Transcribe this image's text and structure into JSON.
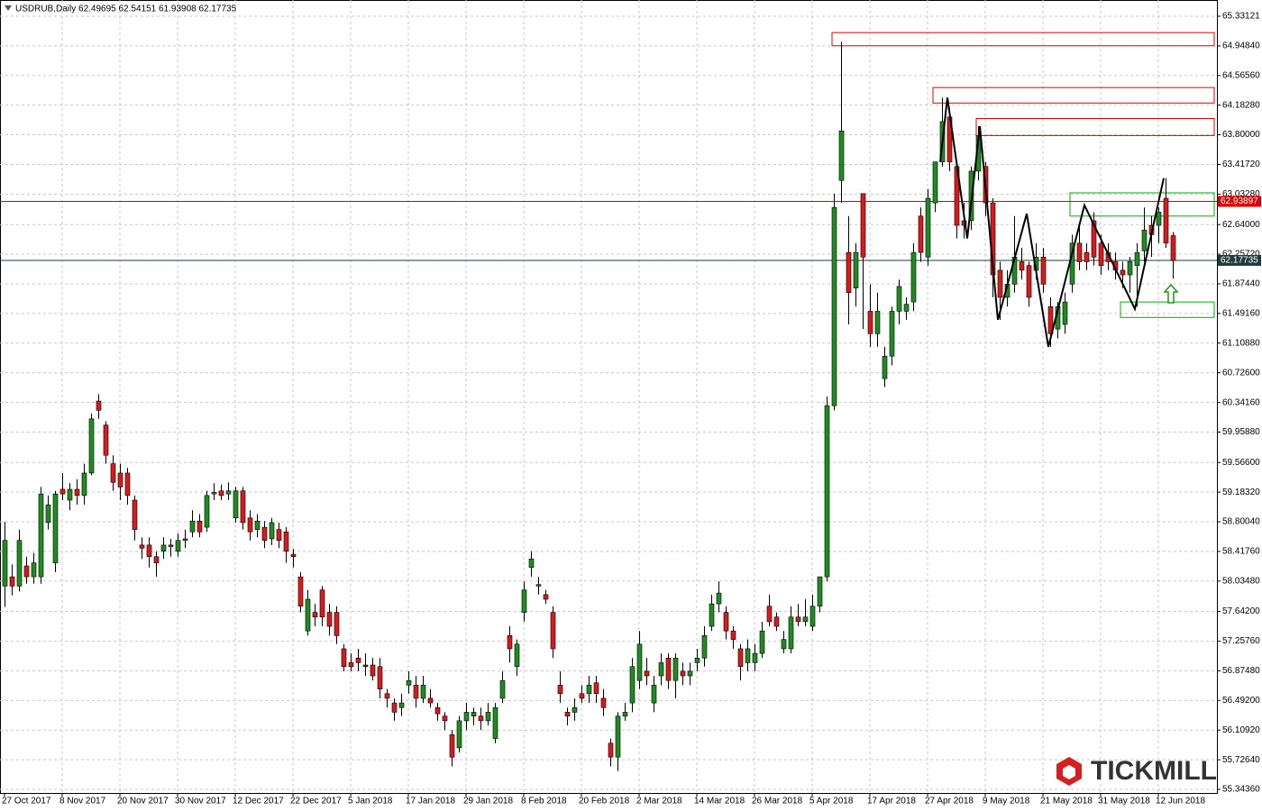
{
  "chart_data": {
    "type": "candlestick",
    "title": "USDRUB,Daily  62.49695 62.54151 61.93908 62.17735",
    "brand": "TICKMILL",
    "up_color": "#1f8c1f",
    "down_color": "#d91a1a",
    "grid": true,
    "xlim": [
      -0.625,
      168.125
    ],
    "ylim": [
      55.297,
      65.541
    ],
    "xticks": [
      {
        "value": 0,
        "label": "27 Oct 2017"
      },
      {
        "value": 8,
        "label": "8 Nov 2017"
      },
      {
        "value": 16,
        "label": "20 Nov 2017"
      },
      {
        "value": 24,
        "label": "30 Nov 2017"
      },
      {
        "value": 32,
        "label": "12 Dec 2017"
      },
      {
        "value": 40,
        "label": "22 Dec 2017"
      },
      {
        "value": 48,
        "label": "5 Jan 2018"
      },
      {
        "value": 56,
        "label": "17 Jan 2018"
      },
      {
        "value": 64,
        "label": "29 Jan 2018"
      },
      {
        "value": 72,
        "label": "8 Feb 2018"
      },
      {
        "value": 80,
        "label": "20 Feb 2018"
      },
      {
        "value": 88,
        "label": "2 Mar 2018"
      },
      {
        "value": 96,
        "label": "14 Mar 2018"
      },
      {
        "value": 104,
        "label": "26 Mar 2018"
      },
      {
        "value": 112,
        "label": "5 Apr 2018"
      },
      {
        "value": 120,
        "label": "17 Apr 2018"
      },
      {
        "value": 128,
        "label": "27 Apr 2018"
      },
      {
        "value": 136,
        "label": "9 May 2018"
      },
      {
        "value": 144,
        "label": "21 May 2018"
      },
      {
        "value": 152,
        "label": "31 May 2018"
      },
      {
        "value": 160,
        "label": "12 Jun 2018"
      }
    ],
    "yticks": [
      65.33121,
      {
        "value": 64.9484,
        "label": "64.94840"
      },
      {
        "value": 64.5656,
        "label": "64.56560"
      },
      {
        "value": 64.1828,
        "label": "64.18280"
      },
      {
        "value": 63.8,
        "label": "63.80000"
      },
      {
        "value": 63.4172,
        "label": "63.41720"
      },
      {
        "value": 63.0328,
        "label": "63.03280"
      },
      {
        "value": 62.64,
        "label": "62.64000"
      },
      {
        "value": 62.2572,
        "label": "62.25720"
      },
      {
        "value": 61.8744,
        "label": "61.87440"
      },
      {
        "value": 61.4916,
        "label": "61.49160"
      },
      {
        "value": 61.1088,
        "label": "61.10880"
      },
      {
        "value": 60.726,
        "label": "60.72600"
      },
      {
        "value": 60.3416,
        "label": "60.34160"
      },
      {
        "value": 59.9588,
        "label": "59.95880"
      },
      {
        "value": 59.566,
        "label": "59.56600"
      },
      {
        "value": 59.1832,
        "label": "59.18320"
      },
      {
        "value": 58.8004,
        "label": "58.80040"
      },
      {
        "value": 58.4176,
        "label": "58.41760"
      },
      {
        "value": 58.0348,
        "label": "58.03480"
      },
      {
        "value": 57.642,
        "label": "57.64200"
      },
      {
        "value": 57.2576,
        "label": "57.25760"
      },
      {
        "value": 56.8748,
        "label": "56.87480"
      },
      {
        "value": 56.492,
        "label": "56.49200"
      },
      {
        "value": 56.1092,
        "label": "56.10920"
      },
      {
        "value": 55.7264,
        "label": "55.72640"
      },
      {
        "value": 55.3436,
        "label": "55.34360"
      }
    ],
    "open": [
      57.97,
      58.09,
      57.97,
      58.23,
      58.09,
      58.09,
      58.79,
      58.27,
      59.22,
      59.08,
      59.22,
      59.14,
      59.43,
      60.36,
      60.05,
      59.55,
      59.43,
      59.43,
      59.08,
      58.5,
      58.5,
      58.35,
      58.42,
      58.5,
      58.42,
      58.56,
      58.67,
      58.81,
      58.73,
      59.16,
      59.2,
      59.16,
      58.85,
      59.2,
      58.85,
      58.7,
      58.73,
      58.58,
      58.7,
      58.67,
      58.38,
      58.09,
      57.39,
      57.63,
      57.92,
      57.63,
      57.63,
      57.16,
      56.98,
      57.04,
      56.95,
      56.95,
      56.93,
      56.58,
      56.46,
      56.4,
      56.69,
      56.69,
      56.52,
      56.52,
      56.4,
      56.29,
      56.05,
      55.88,
      56.23,
      56.29,
      56.29,
      56.23,
      56,
      56.52,
      57.33,
      56.93,
      57.63,
      58.21,
      57.97,
      57.86,
      57.63,
      56.69,
      56.34,
      56.34,
      56.58,
      56.58,
      56.72,
      56.52,
      55.94,
      55.76,
      56.29,
      56.46,
      56.75,
      56.87,
      56.46,
      56.81,
      57.04,
      56.75,
      56.87,
      56.81,
      56.98,
      57.04,
      57.45,
      57.74,
      57.63,
      57.39,
      57.16,
      56.98,
      56.98,
      57.1,
      57.71,
      57.57,
      57.16,
      57.16,
      57.57,
      57.51,
      57.45,
      57.71,
      58.09,
      60.3,
      63.21,
      62.28,
      61.82,
      63.04,
      61.52,
      61.23,
      60.65,
      60.94,
      61.52,
      61.52,
      61.64,
      62.75,
      62.22,
      62.92,
      63.45,
      64.03,
      63.39,
      62.69,
      62.69,
      63.33,
      63.39,
      62.92,
      62.05,
      61.7,
      61.87,
      62.16,
      62.11,
      62.05,
      62.22,
      61.58,
      61.29,
      61.35,
      61.87,
      62.4,
      62.28,
      62.69,
      62.4,
      62.28,
      62.16,
      62.05,
      61.99,
      62.11,
      62.3,
      62.63,
      62.63,
      62.98,
      62.49695
    ],
    "high": [
      58.8,
      58.25,
      58.7,
      58.35,
      58.4,
      59.25,
      59.14,
      59.2,
      59.43,
      59.3,
      59.35,
      59.55,
      60.2,
      60.45,
      60.1,
      59.66,
      59.55,
      59.5,
      59.14,
      58.6,
      58.6,
      58.42,
      58.6,
      58.58,
      58.65,
      58.7,
      58.95,
      58.9,
      59.2,
      59.3,
      59.28,
      59.31,
      59.25,
      59.25,
      58.95,
      58.9,
      58.81,
      58.85,
      58.79,
      58.73,
      58.45,
      58.15,
      57.92,
      57.74,
      57.97,
      57.74,
      57.71,
      57.22,
      57.1,
      57.16,
      57.1,
      57.04,
      57.04,
      56.64,
      56.52,
      56.58,
      56.87,
      56.81,
      56.81,
      56.64,
      56.46,
      56.34,
      56.11,
      56.29,
      56.46,
      56.4,
      56.4,
      56.46,
      56.46,
      56.87,
      57.45,
      57.28,
      58.03,
      58.42,
      58.09,
      57.92,
      57.71,
      56.87,
      56.4,
      56.52,
      56.69,
      56.81,
      56.81,
      56.64,
      56,
      56.34,
      56.46,
      57.04,
      57.39,
      57.04,
      56.81,
      57.1,
      57.1,
      57.1,
      56.98,
      56.98,
      57.16,
      57.45,
      57.86,
      58.03,
      57.71,
      57.45,
      57.22,
      57.28,
      57.22,
      57.51,
      57.86,
      57.63,
      57.39,
      57.71,
      57.74,
      57.8,
      57.86,
      58.09,
      60.42,
      63.04,
      65,
      62.75,
      62.4,
      63.04,
      61.87,
      61.76,
      61.06,
      61.58,
      61.93,
      61.7,
      62.4,
      62.86,
      63.1,
      63.45,
      64.28,
      64.15,
      63.45,
      62.92,
      63.39,
      63.91,
      63.45,
      62.98,
      62.16,
      62.05,
      62.75,
      62.34,
      62.16,
      62.4,
      62.34,
      61.7,
      61.64,
      61.76,
      62.51,
      62.63,
      62.4,
      62.8,
      62.51,
      62.4,
      62.28,
      62.16,
      62.22,
      62.4,
      62.86,
      62.75,
      62.86,
      63.24,
      62.54151
    ],
    "low": [
      57.7,
      57.85,
      57.9,
      58,
      58,
      58,
      58.7,
      58.15,
      59.08,
      58.95,
      59.02,
      59.02,
      59.4,
      60.13,
      59.55,
      59.2,
      59.08,
      59.02,
      58.56,
      58.32,
      58.21,
      58.09,
      58.32,
      58.35,
      58.35,
      58.46,
      58.6,
      58.6,
      58.67,
      59.08,
      59.08,
      59.08,
      58.79,
      58.7,
      58.56,
      58.6,
      58.46,
      58.5,
      58.46,
      58.27,
      58.21,
      57.63,
      57.33,
      57.45,
      57.45,
      57.33,
      57.22,
      56.87,
      56.87,
      56.87,
      56.81,
      56.75,
      56.52,
      56.4,
      56.23,
      56.29,
      56.58,
      56.4,
      56.46,
      56.4,
      56.23,
      56.11,
      55.64,
      55.82,
      56.11,
      56.17,
      56.11,
      56.17,
      55.94,
      56.46,
      56.98,
      56.81,
      57.51,
      58.09,
      57.86,
      57.74,
      57.04,
      56.46,
      56.17,
      56.23,
      56.46,
      56.46,
      56.46,
      56.29,
      55.64,
      55.58,
      56.23,
      56.34,
      56.64,
      56.69,
      56.34,
      56.69,
      56.64,
      56.52,
      56.69,
      56.69,
      56.87,
      56.93,
      57.39,
      57.63,
      57.28,
      57.16,
      56.75,
      56.87,
      56.87,
      57.04,
      57.45,
      57.39,
      57.1,
      57.1,
      57.45,
      57.45,
      57.39,
      57.63,
      58.03,
      60.24,
      62.92,
      61.35,
      61.58,
      61.29,
      61.06,
      61.06,
      60.54,
      60.82,
      61.35,
      61.41,
      61.52,
      62.16,
      62.11,
      62.8,
      63.39,
      63.33,
      62.46,
      62.46,
      62.57,
      63.21,
      62.75,
      61.7,
      61.41,
      61.58,
      61.76,
      61.93,
      61.58,
      61.93,
      61.76,
      61.06,
      61.17,
      61.23,
      61.76,
      62.05,
      62.05,
      62.11,
      61.99,
      62.05,
      61.93,
      61.82,
      61.76,
      61.58,
      62.16,
      62.22,
      62.4,
      62.34,
      61.93908
    ],
    "close": [
      58.56,
      57.97,
      58.56,
      58.09,
      58.27,
      59.16,
      59.02,
      59.16,
      59.16,
      59.22,
      59.14,
      59.43,
      60.13,
      60.24,
      59.66,
      59.31,
      59.25,
      59.14,
      58.7,
      58.46,
      58.35,
      58.27,
      58.5,
      58.48,
      58.56,
      58.58,
      58.81,
      58.67,
      59.14,
      59.18,
      59.14,
      59.2,
      59.2,
      58.79,
      58.67,
      58.81,
      58.56,
      58.79,
      58.56,
      58.42,
      58.35,
      57.71,
      57.8,
      57.57,
      57.57,
      57.45,
      57.33,
      56.93,
      56.93,
      56.98,
      56.93,
      56.81,
      56.64,
      56.52,
      56.34,
      56.46,
      56.75,
      56.52,
      56.69,
      56.46,
      56.32,
      56.23,
      55.76,
      56.23,
      56.34,
      56.34,
      56.23,
      56.34,
      56.4,
      56.75,
      57.16,
      57.22,
      57.92,
      58.32,
      57.99,
      57.8,
      57.16,
      56.58,
      56.29,
      56.4,
      56.52,
      56.69,
      56.58,
      56.4,
      55.76,
      56.29,
      56.34,
      56.93,
      57.22,
      56.81,
      56.69,
      56.98,
      56.75,
      57.04,
      56.81,
      56.87,
      57.04,
      57.33,
      57.74,
      57.88,
      57.39,
      57.28,
      56.93,
      57.16,
      57.1,
      57.39,
      57.51,
      57.45,
      57.28,
      57.57,
      57.51,
      57.57,
      57.71,
      58.09,
      60.3,
      62.86,
      63.85,
      61.76,
      62.28,
      62.22,
      61.23,
      61.52,
      60.94,
      61.52,
      61.84,
      61.61,
      62.28,
      62.28,
      62.98,
      63.45,
      63.97,
      63.45,
      62.63,
      62.63,
      63.33,
      63.79,
      62.92,
      61.99,
      61.7,
      61.87,
      62.22,
      62.05,
      61.7,
      62.22,
      61.87,
      61.23,
      61.58,
      61.64,
      62.4,
      62.16,
      62.16,
      62.22,
      62.11,
      62.16,
      62.05,
      61.99,
      62.16,
      62.28,
      62.57,
      62.51,
      62.8,
      62.4,
      62.17735
    ],
    "levels": [
      {
        "value": 62.93897,
        "color": "#e00000"
      },
      {
        "value": 62.17735,
        "color": "#1e3c3c"
      }
    ],
    "zones": [
      {
        "x": [
          114.75,
          167.75
        ],
        "y": [
          64.95,
          65.12
        ],
        "color": "#e00000"
      },
      {
        "x": [
          128.75,
          167.75
        ],
        "y": [
          64.21,
          64.41
        ],
        "color": "#e00000"
      },
      {
        "x": [
          134.75,
          167.75
        ],
        "y": [
          63.79,
          64.01
        ],
        "color": "#e00000"
      },
      {
        "x": [
          147.75,
          167.75
        ],
        "y": [
          62.75,
          63.05
        ],
        "color": "#00b000"
      },
      {
        "x": [
          154.75,
          167.75
        ],
        "y": [
          61.44,
          61.64
        ],
        "color": "#00b000"
      }
    ],
    "zigzag": {
      "x": [
        129.75,
        130.75,
        133.5,
        135.25,
        137.75,
        141.75,
        144.75,
        149.75,
        156.75,
        160.75
      ],
      "y": [
        63.45,
        64.28,
        62.46,
        63.91,
        61.41,
        62.78,
        61.06,
        62.89,
        61.55,
        63.24
      ],
      "color": "#000000"
    }
  }
}
